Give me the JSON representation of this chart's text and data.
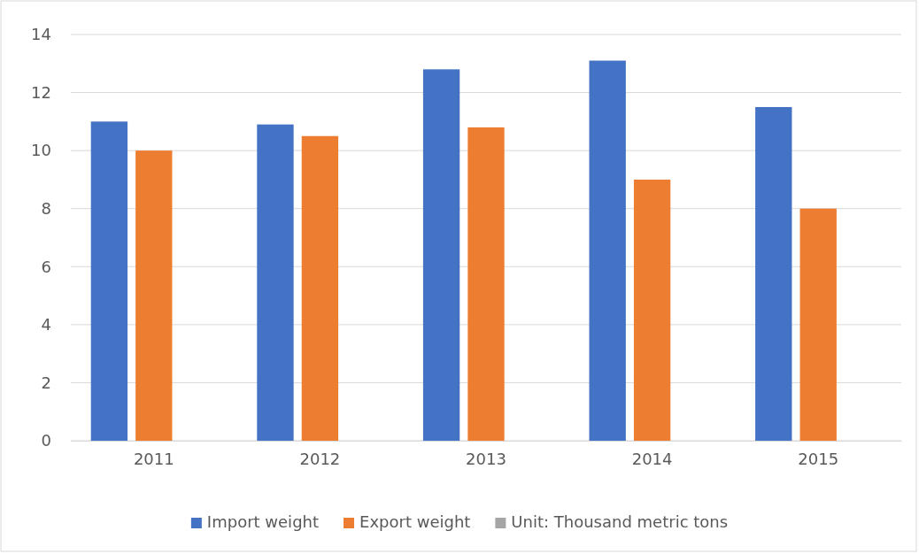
{
  "chart_data": {
    "type": "bar",
    "categories": [
      "2011",
      "2012",
      "2013",
      "2014",
      "2015"
    ],
    "series": [
      {
        "name": "Import weight",
        "color": "#4472c4",
        "values": [
          11,
          10.9,
          12.8,
          13.1,
          11.5
        ]
      },
      {
        "name": "Export weight",
        "color": "#ed7d31",
        "values": [
          10,
          10.5,
          10.8,
          9,
          8
        ]
      },
      {
        "name": "Unit: Thousand metric tons",
        "color": "#a5a5a5",
        "values": [
          null,
          null,
          null,
          null,
          null
        ]
      }
    ],
    "ylim": [
      0,
      14
    ],
    "yticks": [
      0,
      2,
      4,
      6,
      8,
      10,
      12,
      14
    ],
    "grid": "y",
    "legend": "bottom"
  }
}
